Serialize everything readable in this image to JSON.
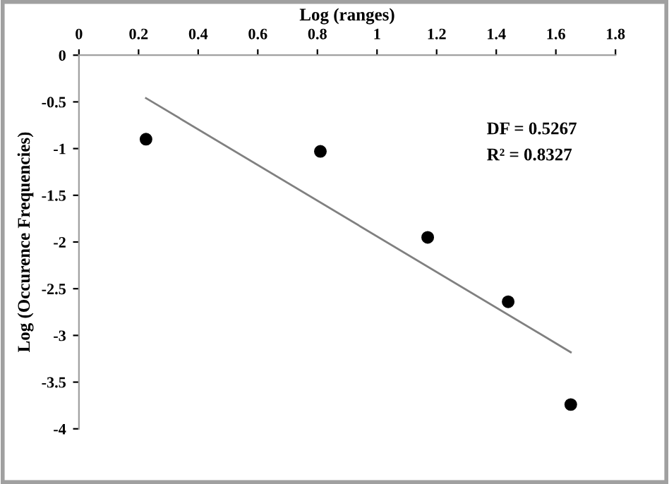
{
  "chart_data": {
    "type": "scatter",
    "xlabel": "Log (ranges)",
    "ylabel": "Log (Occurence Frequencies)",
    "xlim": [
      0,
      1.8
    ],
    "ylim": [
      -4,
      0
    ],
    "xticks": [
      0,
      0.2,
      0.4,
      0.6,
      0.8,
      1,
      1.2,
      1.4,
      1.6,
      1.8
    ],
    "yticks": [
      0,
      -0.5,
      -1,
      -1.5,
      -2,
      -2.5,
      -3,
      -3.5,
      -4
    ],
    "grid": false,
    "legend": false,
    "series": [
      {
        "marker": "circle",
        "color": "#000000",
        "x": [
          0.225,
          0.81,
          1.17,
          1.44,
          1.65
        ],
        "values": [
          -0.9,
          -1.03,
          -1.95,
          -2.64,
          -3.74
        ]
      },
      {
        "type": "line",
        "marker": "none",
        "color": "#808080",
        "line_style": "solid",
        "x": [
          0.225,
          1.65
        ],
        "values": [
          -0.46,
          -3.18
        ]
      }
    ],
    "annotations": [
      "DF = 0.5267",
      "R² = 0.8327"
    ]
  }
}
